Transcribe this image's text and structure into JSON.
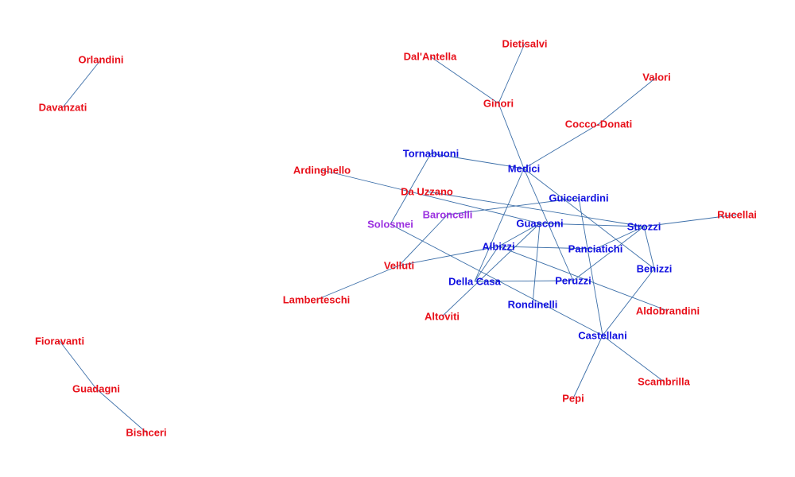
{
  "graph": {
    "colors": {
      "edge": "#3b6ea8",
      "red": "#e8101a",
      "blue": "#1010e0",
      "purple": "#9b30e0"
    },
    "nodes": [
      {
        "id": "orlandini",
        "label": "Orlandini",
        "color": "red"
      },
      {
        "id": "davanzati",
        "label": "Davanzati",
        "color": "red"
      },
      {
        "id": "fioravanti",
        "label": "Fioravanti",
        "color": "red"
      },
      {
        "id": "guadagni",
        "label": "Guadagni",
        "color": "red"
      },
      {
        "id": "bishceri",
        "label": "Bishceri",
        "color": "red"
      },
      {
        "id": "dietisalvi",
        "label": "Dietisalvi",
        "color": "red"
      },
      {
        "id": "dalantella",
        "label": "Dal'Antella",
        "color": "red"
      },
      {
        "id": "ginori",
        "label": "Ginori",
        "color": "red"
      },
      {
        "id": "valori",
        "label": "Valori",
        "color": "red"
      },
      {
        "id": "coccodonati",
        "label": "Cocco-Donati",
        "color": "red"
      },
      {
        "id": "tornabuoni",
        "label": "Tornabuoni",
        "color": "blue"
      },
      {
        "id": "medici",
        "label": "Medici",
        "color": "blue"
      },
      {
        "id": "ardinghello",
        "label": "Ardinghello",
        "color": "red"
      },
      {
        "id": "dauzzano",
        "label": "Da Uzzano",
        "color": "red"
      },
      {
        "id": "guicciardini",
        "label": "Guicciardini",
        "color": "blue"
      },
      {
        "id": "baroncelli",
        "label": "Baroncelli",
        "color": "purple"
      },
      {
        "id": "solosmei",
        "label": "Solosmei",
        "color": "purple"
      },
      {
        "id": "guasconi",
        "label": "Guasconi",
        "color": "blue"
      },
      {
        "id": "strozzi",
        "label": "Strozzi",
        "color": "blue"
      },
      {
        "id": "rucellai",
        "label": "Rucellai",
        "color": "red"
      },
      {
        "id": "albizzi",
        "label": "Albizzi",
        "color": "blue"
      },
      {
        "id": "panciatichi",
        "label": "Panciatichi",
        "color": "blue"
      },
      {
        "id": "velluti",
        "label": "Velluti",
        "color": "red"
      },
      {
        "id": "benizzi",
        "label": "Benizzi",
        "color": "blue"
      },
      {
        "id": "dellacasa",
        "label": "Della Casa",
        "color": "blue"
      },
      {
        "id": "peruzzi",
        "label": "Peruzzi",
        "color": "blue"
      },
      {
        "id": "lamberteschi",
        "label": "Lamberteschi",
        "color": "red"
      },
      {
        "id": "rondinelli",
        "label": "Rondinelli",
        "color": "blue"
      },
      {
        "id": "aldobrandini",
        "label": "Aldobrandini",
        "color": "red"
      },
      {
        "id": "altoviti",
        "label": "Altoviti",
        "color": "red"
      },
      {
        "id": "castellani",
        "label": "Castellani",
        "color": "blue"
      },
      {
        "id": "scambrilla",
        "label": "Scambrilla",
        "color": "red"
      },
      {
        "id": "pepi",
        "label": "Pepi",
        "color": "red"
      }
    ],
    "edges": [
      [
        "orlandini",
        "davanzati"
      ],
      [
        "fioravanti",
        "guadagni"
      ],
      [
        "guadagni",
        "bishceri"
      ],
      [
        "dietisalvi",
        "ginori"
      ],
      [
        "dalantella",
        "ginori"
      ],
      [
        "ginori",
        "medici"
      ],
      [
        "valori",
        "coccodonati"
      ],
      [
        "coccodonati",
        "medici"
      ],
      [
        "tornabuoni",
        "medici"
      ],
      [
        "tornabuoni",
        "solosmei"
      ],
      [
        "ardinghello",
        "guasconi"
      ],
      [
        "dauzzano",
        "strozzi"
      ],
      [
        "medici",
        "peruzzi"
      ],
      [
        "medici",
        "dellacasa"
      ],
      [
        "medici",
        "benizzi"
      ],
      [
        "guicciardini",
        "baroncelli"
      ],
      [
        "guicciardini",
        "castellani"
      ],
      [
        "baroncelli",
        "velluti"
      ],
      [
        "guasconi",
        "strozzi"
      ],
      [
        "guasconi",
        "albizzi"
      ],
      [
        "guasconi",
        "rondinelli"
      ],
      [
        "guasconi",
        "altoviti"
      ],
      [
        "strozzi",
        "rucellai"
      ],
      [
        "strozzi",
        "panciatichi"
      ],
      [
        "strozzi",
        "peruzzi"
      ],
      [
        "strozzi",
        "benizzi"
      ],
      [
        "albizzi",
        "panciatichi"
      ],
      [
        "albizzi",
        "velluti"
      ],
      [
        "albizzi",
        "dellacasa"
      ],
      [
        "albizzi",
        "aldobrandini"
      ],
      [
        "velluti",
        "lamberteschi"
      ],
      [
        "dellacasa",
        "peruzzi"
      ],
      [
        "solosmei",
        "castellani"
      ],
      [
        "benizzi",
        "castellani"
      ],
      [
        "castellani",
        "scambrilla"
      ],
      [
        "castellani",
        "pepi"
      ]
    ]
  }
}
